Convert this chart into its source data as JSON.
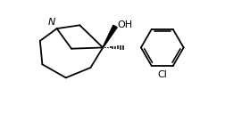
{
  "background_color": "#ffffff",
  "line_color": "#000000",
  "lw": 1.3,
  "fig_width": 2.53,
  "fig_height": 1.27,
  "dpi": 100,
  "xlim": [
    0,
    10
  ],
  "ylim": [
    0,
    5
  ],
  "N_label": "N",
  "OH_label": "OH",
  "Cl_label": "Cl",
  "N_fontsize": 8,
  "OH_fontsize": 8,
  "Cl_fontsize": 8
}
